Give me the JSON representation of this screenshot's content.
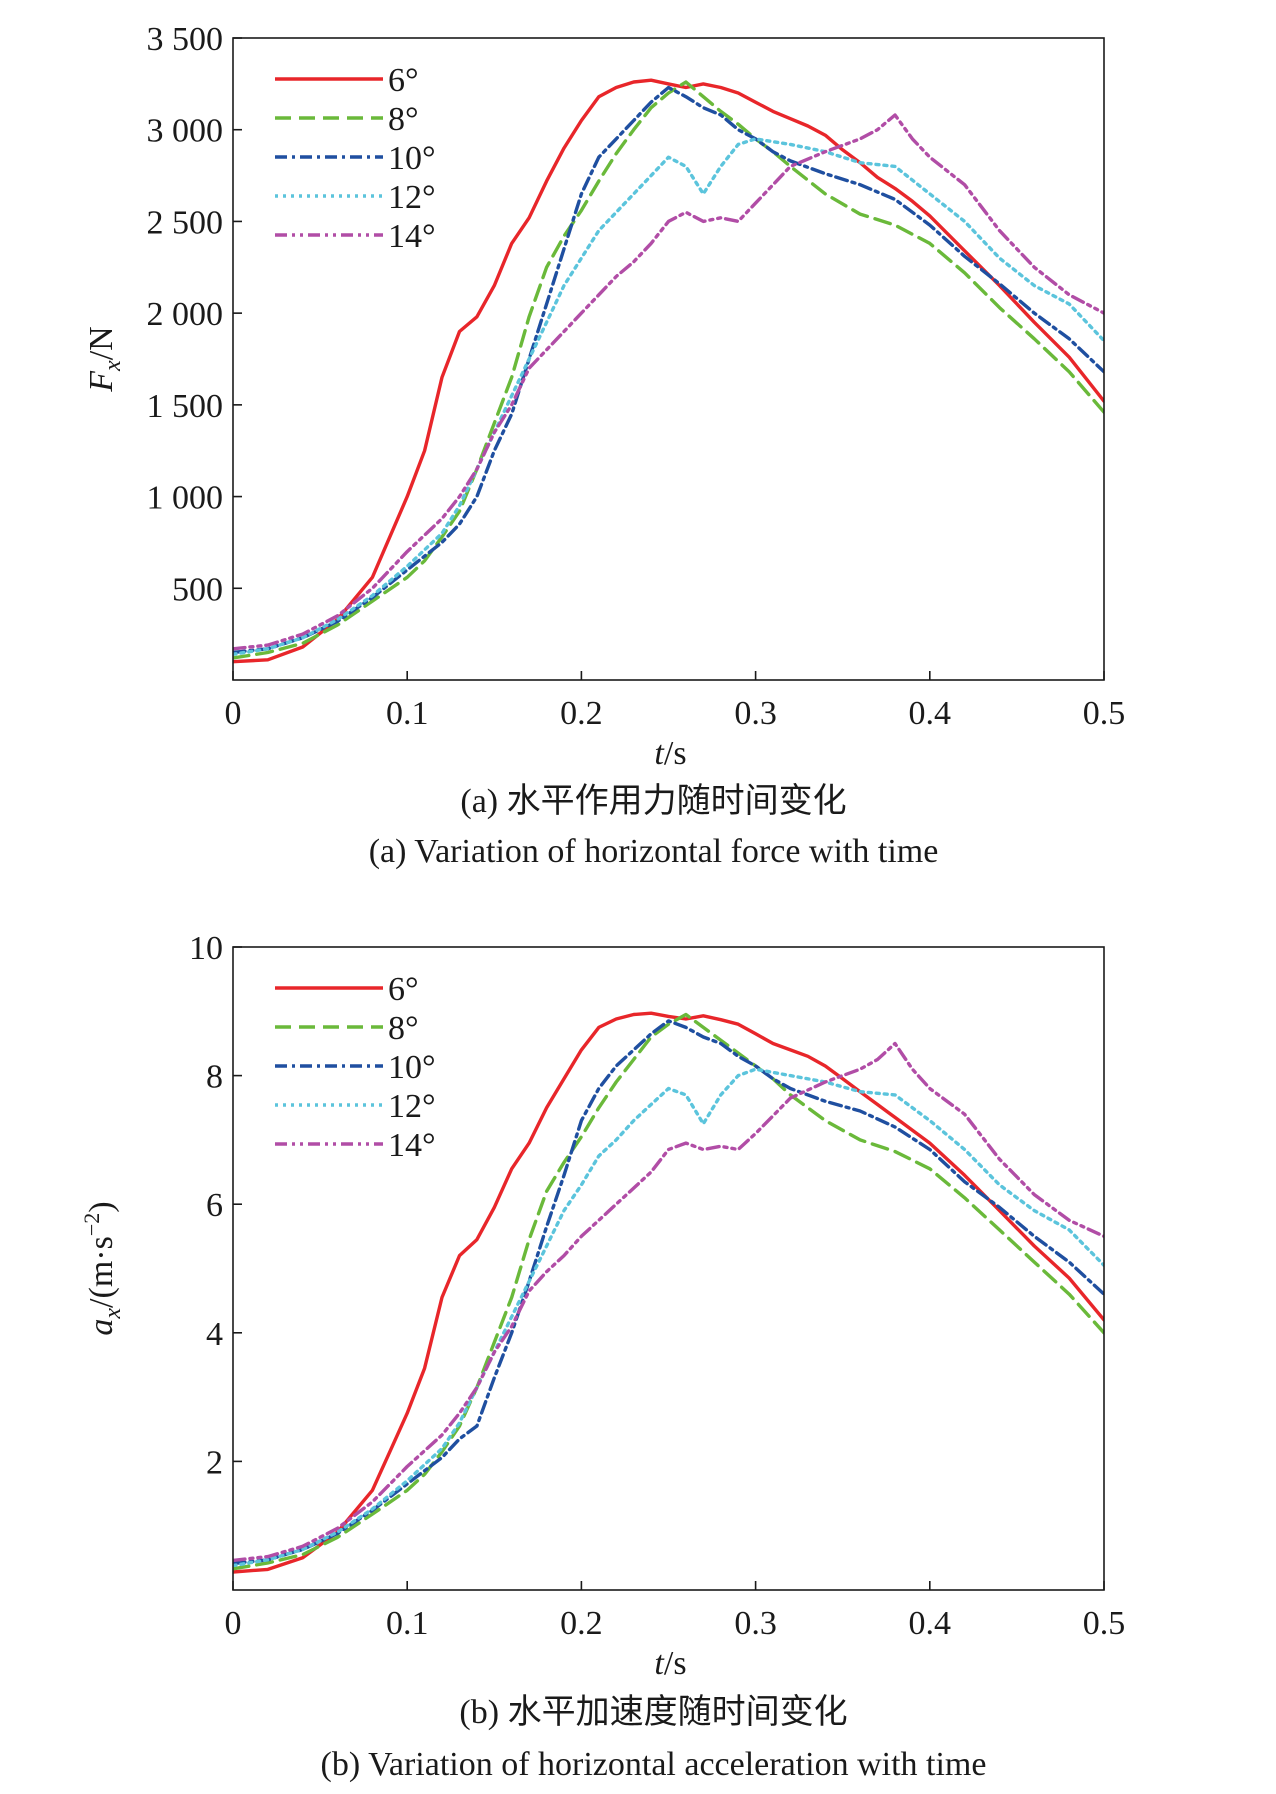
{
  "chart_data": [
    {
      "type": "line",
      "xlabel": "t/s",
      "ylabel": "Fx/N",
      "xlim": [
        0,
        0.5
      ],
      "ylim": [
        0,
        3500
      ],
      "xticks": [
        "0",
        "0.1",
        "0.2",
        "0.3",
        "0.4",
        "0.5"
      ],
      "yticks": [
        "500",
        "1 000",
        "1 500",
        "2 000",
        "2 500",
        "3 000",
        "3 500"
      ],
      "legend_position": "top-left",
      "caption_cn": "(a) 水平作用力随时间变化",
      "caption_en": "(a) Variation of horizontal force with time",
      "series": [
        {
          "name": "6°",
          "color": "#e8262a",
          "dash": "solid",
          "x": [
            0.0,
            0.02,
            0.04,
            0.06,
            0.08,
            0.09,
            0.1,
            0.11,
            0.12,
            0.13,
            0.14,
            0.15,
            0.16,
            0.17,
            0.18,
            0.19,
            0.2,
            0.21,
            0.22,
            0.23,
            0.24,
            0.25,
            0.26,
            0.27,
            0.28,
            0.29,
            0.3,
            0.31,
            0.32,
            0.33,
            0.34,
            0.35,
            0.36,
            0.37,
            0.38,
            0.39,
            0.4,
            0.42,
            0.44,
            0.46,
            0.48,
            0.5
          ],
          "y": [
            100,
            110,
            180,
            330,
            560,
            780,
            1000,
            1250,
            1650,
            1900,
            1980,
            2150,
            2380,
            2520,
            2720,
            2900,
            3050,
            3180,
            3230,
            3260,
            3270,
            3250,
            3230,
            3250,
            3230,
            3200,
            3150,
            3100,
            3060,
            3020,
            2970,
            2890,
            2820,
            2740,
            2680,
            2610,
            2530,
            2340,
            2150,
            1950,
            1760,
            1520
          ]
        },
        {
          "name": "8°",
          "color": "#6ab93a",
          "dash": "dashed",
          "x": [
            0.0,
            0.02,
            0.04,
            0.06,
            0.08,
            0.1,
            0.11,
            0.12,
            0.13,
            0.14,
            0.15,
            0.16,
            0.17,
            0.18,
            0.19,
            0.2,
            0.21,
            0.22,
            0.23,
            0.24,
            0.25,
            0.26,
            0.27,
            0.28,
            0.29,
            0.3,
            0.31,
            0.32,
            0.34,
            0.36,
            0.38,
            0.4,
            0.42,
            0.44,
            0.46,
            0.48,
            0.5
          ],
          "y": [
            120,
            150,
            200,
            300,
            430,
            560,
            650,
            780,
            920,
            1150,
            1400,
            1650,
            1980,
            2250,
            2420,
            2560,
            2720,
            2870,
            3000,
            3120,
            3200,
            3260,
            3180,
            3100,
            3030,
            2950,
            2880,
            2800,
            2650,
            2540,
            2480,
            2380,
            2220,
            2030,
            1860,
            1680,
            1460
          ]
        },
        {
          "name": "10°",
          "color": "#1f4fa0",
          "dash": "dashdot",
          "x": [
            0.0,
            0.02,
            0.04,
            0.06,
            0.08,
            0.1,
            0.12,
            0.13,
            0.14,
            0.15,
            0.16,
            0.17,
            0.18,
            0.19,
            0.2,
            0.21,
            0.22,
            0.23,
            0.24,
            0.25,
            0.26,
            0.27,
            0.28,
            0.29,
            0.3,
            0.31,
            0.32,
            0.34,
            0.36,
            0.38,
            0.4,
            0.42,
            0.44,
            0.46,
            0.48,
            0.5
          ],
          "y": [
            150,
            170,
            230,
            320,
            450,
            600,
            750,
            850,
            1000,
            1250,
            1450,
            1750,
            2050,
            2350,
            2650,
            2850,
            2950,
            3050,
            3150,
            3230,
            3180,
            3120,
            3080,
            3000,
            2950,
            2880,
            2830,
            2760,
            2700,
            2620,
            2480,
            2310,
            2160,
            2000,
            1860,
            1680
          ]
        },
        {
          "name": "12°",
          "color": "#5bc4dc",
          "dash": "dotted",
          "x": [
            0.0,
            0.02,
            0.04,
            0.06,
            0.08,
            0.1,
            0.12,
            0.13,
            0.14,
            0.15,
            0.16,
            0.17,
            0.18,
            0.19,
            0.2,
            0.21,
            0.22,
            0.23,
            0.24,
            0.25,
            0.26,
            0.27,
            0.28,
            0.29,
            0.3,
            0.32,
            0.34,
            0.36,
            0.38,
            0.4,
            0.42,
            0.44,
            0.46,
            0.48,
            0.5
          ],
          "y": [
            140,
            170,
            230,
            330,
            460,
            620,
            800,
            950,
            1150,
            1350,
            1550,
            1750,
            1950,
            2150,
            2300,
            2450,
            2550,
            2650,
            2750,
            2850,
            2800,
            2650,
            2800,
            2920,
            2950,
            2920,
            2880,
            2820,
            2800,
            2650,
            2500,
            2300,
            2150,
            2050,
            1850
          ]
        },
        {
          "name": "14°",
          "color": "#b14da6",
          "dash": "dashdotdot",
          "x": [
            0.0,
            0.02,
            0.04,
            0.06,
            0.08,
            0.1,
            0.12,
            0.13,
            0.14,
            0.15,
            0.16,
            0.17,
            0.18,
            0.19,
            0.2,
            0.21,
            0.22,
            0.23,
            0.24,
            0.25,
            0.26,
            0.27,
            0.28,
            0.29,
            0.3,
            0.32,
            0.34,
            0.36,
            0.37,
            0.38,
            0.39,
            0.4,
            0.42,
            0.44,
            0.46,
            0.48,
            0.5
          ],
          "y": [
            170,
            190,
            250,
            350,
            500,
            700,
            880,
            1000,
            1150,
            1350,
            1500,
            1700,
            1800,
            1900,
            2000,
            2100,
            2200,
            2280,
            2380,
            2500,
            2550,
            2500,
            2520,
            2500,
            2600,
            2800,
            2880,
            2950,
            3000,
            3080,
            2950,
            2850,
            2700,
            2450,
            2250,
            2100,
            2000
          ]
        }
      ]
    },
    {
      "type": "line",
      "xlabel": "t/s",
      "ylabel": "ax/(m·s⁻²)",
      "xlim": [
        0,
        0.5
      ],
      "ylim": [
        0,
        10
      ],
      "xticks": [
        "0",
        "0.1",
        "0.2",
        "0.3",
        "0.4",
        "0.5"
      ],
      "yticks": [
        "2",
        "4",
        "6",
        "8",
        "10"
      ],
      "legend_position": "top-left",
      "caption_cn": "(b) 水平加速度随时间变化",
      "caption_en": "(b) Variation of horizontal acceleration with time",
      "series": [
        {
          "name": "6°",
          "color": "#e8262a",
          "dash": "solid",
          "x": [
            0.0,
            0.02,
            0.04,
            0.06,
            0.08,
            0.09,
            0.1,
            0.11,
            0.12,
            0.13,
            0.14,
            0.15,
            0.16,
            0.17,
            0.18,
            0.19,
            0.2,
            0.21,
            0.22,
            0.23,
            0.24,
            0.25,
            0.26,
            0.27,
            0.28,
            0.29,
            0.3,
            0.31,
            0.32,
            0.33,
            0.34,
            0.35,
            0.36,
            0.37,
            0.38,
            0.39,
            0.4,
            0.42,
            0.44,
            0.46,
            0.48,
            0.5
          ],
          "y": [
            0.28,
            0.32,
            0.5,
            0.9,
            1.55,
            2.15,
            2.75,
            3.45,
            4.55,
            5.2,
            5.45,
            5.95,
            6.55,
            6.95,
            7.5,
            7.95,
            8.4,
            8.75,
            8.88,
            8.95,
            8.97,
            8.92,
            8.88,
            8.93,
            8.87,
            8.8,
            8.65,
            8.5,
            8.4,
            8.3,
            8.15,
            7.95,
            7.75,
            7.55,
            7.35,
            7.15,
            6.95,
            6.45,
            5.9,
            5.35,
            4.85,
            4.2
          ]
        },
        {
          "name": "8°",
          "color": "#6ab93a",
          "dash": "dashed",
          "x": [
            0.0,
            0.02,
            0.04,
            0.06,
            0.08,
            0.1,
            0.11,
            0.12,
            0.13,
            0.14,
            0.15,
            0.16,
            0.17,
            0.18,
            0.19,
            0.2,
            0.21,
            0.22,
            0.23,
            0.24,
            0.25,
            0.26,
            0.27,
            0.28,
            0.29,
            0.3,
            0.31,
            0.32,
            0.34,
            0.36,
            0.38,
            0.4,
            0.42,
            0.44,
            0.46,
            0.48,
            0.5
          ],
          "y": [
            0.33,
            0.42,
            0.55,
            0.82,
            1.18,
            1.55,
            1.8,
            2.15,
            2.55,
            3.15,
            3.85,
            4.55,
            5.45,
            6.2,
            6.65,
            7.05,
            7.5,
            7.9,
            8.25,
            8.6,
            8.8,
            8.95,
            8.75,
            8.55,
            8.35,
            8.15,
            7.95,
            7.7,
            7.3,
            7.0,
            6.82,
            6.55,
            6.1,
            5.6,
            5.1,
            4.6,
            4.0
          ]
        },
        {
          "name": "10°",
          "color": "#1f4fa0",
          "dash": "dashdot",
          "x": [
            0.0,
            0.02,
            0.04,
            0.06,
            0.08,
            0.1,
            0.12,
            0.13,
            0.14,
            0.15,
            0.16,
            0.17,
            0.18,
            0.19,
            0.2,
            0.21,
            0.22,
            0.23,
            0.24,
            0.25,
            0.26,
            0.27,
            0.28,
            0.29,
            0.3,
            0.31,
            0.32,
            0.34,
            0.36,
            0.38,
            0.4,
            0.42,
            0.44,
            0.46,
            0.48,
            0.5
          ],
          "y": [
            0.41,
            0.47,
            0.63,
            0.88,
            1.24,
            1.65,
            2.06,
            2.35,
            2.55,
            3.3,
            4.0,
            4.8,
            5.65,
            6.45,
            7.3,
            7.8,
            8.15,
            8.4,
            8.65,
            8.85,
            8.75,
            8.6,
            8.5,
            8.3,
            8.15,
            7.95,
            7.8,
            7.6,
            7.45,
            7.2,
            6.85,
            6.35,
            5.95,
            5.5,
            5.1,
            4.6
          ]
        },
        {
          "name": "12°",
          "color": "#5bc4dc",
          "dash": "dotted",
          "x": [
            0.0,
            0.02,
            0.04,
            0.06,
            0.08,
            0.1,
            0.12,
            0.13,
            0.14,
            0.15,
            0.16,
            0.17,
            0.18,
            0.19,
            0.2,
            0.21,
            0.22,
            0.23,
            0.24,
            0.25,
            0.26,
            0.27,
            0.28,
            0.29,
            0.3,
            0.32,
            0.34,
            0.36,
            0.38,
            0.4,
            0.42,
            0.44,
            0.46,
            0.48,
            0.5
          ],
          "y": [
            0.38,
            0.47,
            0.63,
            0.9,
            1.26,
            1.7,
            2.2,
            2.6,
            3.15,
            3.7,
            4.25,
            4.8,
            5.35,
            5.9,
            6.3,
            6.75,
            7.0,
            7.3,
            7.55,
            7.8,
            7.7,
            7.25,
            7.7,
            8.0,
            8.1,
            8.0,
            7.9,
            7.75,
            7.7,
            7.3,
            6.85,
            6.3,
            5.9,
            5.6,
            5.05
          ]
        },
        {
          "name": "14°",
          "color": "#b14da6",
          "dash": "dashdotdot",
          "x": [
            0.0,
            0.02,
            0.04,
            0.06,
            0.08,
            0.1,
            0.12,
            0.13,
            0.14,
            0.15,
            0.16,
            0.17,
            0.18,
            0.19,
            0.2,
            0.21,
            0.22,
            0.23,
            0.24,
            0.25,
            0.26,
            0.27,
            0.28,
            0.29,
            0.3,
            0.32,
            0.34,
            0.36,
            0.37,
            0.38,
            0.39,
            0.4,
            0.42,
            0.44,
            0.46,
            0.48,
            0.5
          ],
          "y": [
            0.46,
            0.52,
            0.68,
            0.96,
            1.37,
            1.92,
            2.41,
            2.75,
            3.15,
            3.7,
            4.1,
            4.65,
            4.95,
            5.2,
            5.5,
            5.75,
            6.0,
            6.25,
            6.5,
            6.85,
            6.95,
            6.85,
            6.9,
            6.85,
            7.1,
            7.65,
            7.9,
            8.1,
            8.25,
            8.5,
            8.1,
            7.8,
            7.4,
            6.7,
            6.15,
            5.75,
            5.5
          ]
        }
      ]
    }
  ]
}
